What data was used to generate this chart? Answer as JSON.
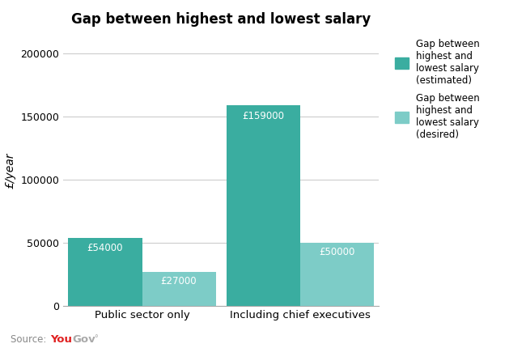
{
  "title": "Gap between highest and lowest salary",
  "categories": [
    "Public sector only",
    "Including chief executives"
  ],
  "estimated_values": [
    54000,
    159000
  ],
  "desired_values": [
    27000,
    50000
  ],
  "bar_color_estimated": "#3aada0",
  "bar_color_desired": "#7dccc7",
  "ylabel": "£/year",
  "ylim": [
    0,
    215000
  ],
  "yticks": [
    0,
    50000,
    100000,
    150000,
    200000
  ],
  "bar_labels_estimated": [
    "£54000",
    "£159000"
  ],
  "bar_labels_desired": [
    "£27000",
    "£50000"
  ],
  "legend_estimated": "Gap between\nhighest and\nlowest salary\n(estimated)",
  "legend_desired": "Gap between\nhighest and\nlowest salary\n(desired)",
  "background_color": "#ffffff",
  "grid_color": "#cccccc",
  "bar_width": 0.28,
  "x_positions": [
    0.3,
    0.9
  ]
}
